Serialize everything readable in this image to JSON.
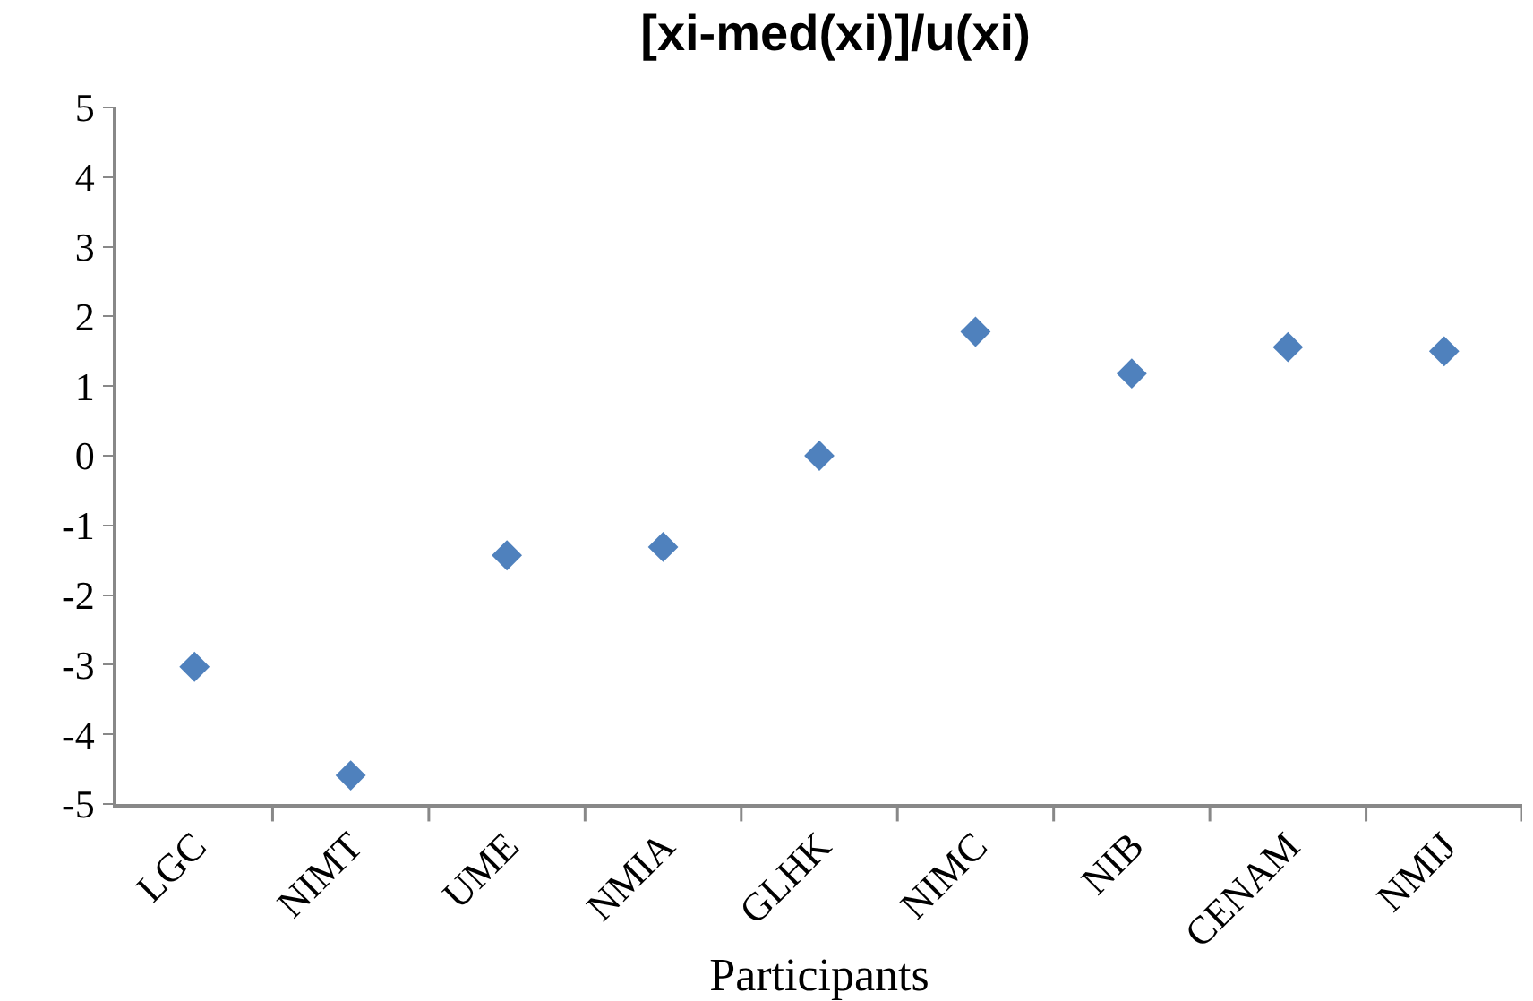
{
  "chart_data": {
    "type": "scatter",
    "title": "[xi-med(xi)]/u(xi)",
    "xlabel": "Participants",
    "categories": [
      "LGC",
      "NIMT",
      "UME",
      "NMIA",
      "GLHK",
      "NIMC",
      "NIB",
      "CENAM",
      "NMIJ"
    ],
    "series": [
      {
        "color": "#4f81bd",
        "values": [
          -3.03,
          -4.59,
          -1.43,
          -1.31,
          0,
          1.78,
          1.18,
          1.56,
          1.5
        ]
      }
    ],
    "ylim": [
      -5,
      5
    ],
    "yticks": [
      -5,
      -4,
      -3,
      -2,
      -1,
      0,
      1,
      2,
      3,
      4,
      5
    ],
    "grid": false,
    "marker": "diamond"
  }
}
